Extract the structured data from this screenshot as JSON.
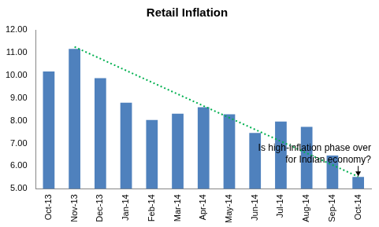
{
  "chart_data": {
    "type": "bar",
    "title": "Retail Inflation",
    "categories": [
      "Oct-13",
      "Nov-13",
      "Dec-13",
      "Jan-14",
      "Feb-14",
      "Mar-14",
      "Apr-14",
      "May-14",
      "Jun-14",
      "Jul-14",
      "Aug-14",
      "Sep-14",
      "Oct-14"
    ],
    "series": [
      {
        "color": "#4f81bd",
        "values": [
          10.17,
          11.16,
          9.87,
          8.79,
          8.03,
          8.31,
          8.59,
          8.28,
          7.46,
          7.96,
          7.73,
          6.46,
          5.52
        ]
      },
      {
        "type": "line",
        "line_style": "dotted",
        "marker": "none",
        "color": "#00b050",
        "values": [
          null,
          11.25,
          10.73,
          10.21,
          9.69,
          9.17,
          8.65,
          8.13,
          7.61,
          7.09,
          6.57,
          6.05,
          5.53
        ]
      }
    ],
    "ylim": [
      5,
      12
    ],
    "yticks": [
      {
        "value": 5,
        "label": "5.00"
      },
      {
        "value": 6,
        "label": "6.00"
      },
      {
        "value": 7,
        "label": "7.00"
      },
      {
        "value": 8,
        "label": "8.00"
      },
      {
        "value": 9,
        "label": "9.00"
      },
      {
        "value": 10,
        "label": "10.00"
      },
      {
        "value": 11,
        "label": "11.00"
      },
      {
        "value": 12,
        "label": "12.00"
      }
    ],
    "grid": false,
    "annotations": [
      {
        "text": [
          "Is high-inflation phase over",
          "for Indian economy?"
        ],
        "category": "Oct-14"
      }
    ]
  }
}
